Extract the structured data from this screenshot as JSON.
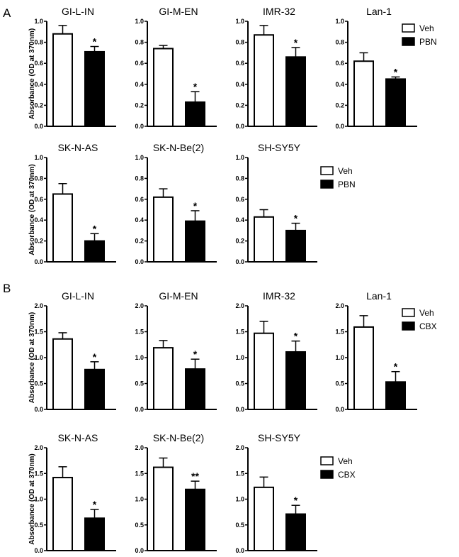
{
  "chart_data": [
    {
      "type": "bar",
      "panel_label": "A",
      "ylabel": "Absorbance (OD at 370nm)",
      "ylim": [
        0,
        1.0
      ],
      "yticks": [
        "0.0",
        "0.2",
        "0.4",
        "0.6",
        "0.8",
        "1.0"
      ],
      "legend": [
        "Veh",
        "PBN"
      ],
      "colors": {
        "Veh": "#ffffff",
        "PBN": "#000000"
      },
      "rows": [
        [
          {
            "title": "GI-L-IN",
            "values": [
              0.88,
              0.71
            ],
            "errors": [
              0.08,
              0.05
            ],
            "sig": "*"
          },
          {
            "title": "GI-M-EN",
            "values": [
              0.74,
              0.23
            ],
            "errors": [
              0.03,
              0.1
            ],
            "sig": "*"
          },
          {
            "title": "IMR-32",
            "values": [
              0.87,
              0.66
            ],
            "errors": [
              0.09,
              0.09
            ],
            "sig": "*"
          },
          {
            "title": "Lan-1",
            "values": [
              0.62,
              0.45
            ],
            "errors": [
              0.08,
              0.02
            ],
            "sig": "*"
          }
        ],
        [
          {
            "title": "SK-N-AS",
            "values": [
              0.65,
              0.2
            ],
            "errors": [
              0.1,
              0.07
            ],
            "sig": "*"
          },
          {
            "title": "SK-N-Be(2)",
            "values": [
              0.62,
              0.39
            ],
            "errors": [
              0.08,
              0.1
            ],
            "sig": "*"
          },
          {
            "title": "SH-SY5Y",
            "values": [
              0.43,
              0.3
            ],
            "errors": [
              0.07,
              0.07
            ],
            "sig": "*"
          }
        ]
      ]
    },
    {
      "type": "bar",
      "panel_label": "B",
      "ylabel": "Absorbance (OD at 370nm)",
      "ylim": [
        0,
        2.0
      ],
      "yticks": [
        "0.0",
        "0.5",
        "1.0",
        "1.5",
        "2.0"
      ],
      "legend": [
        "Veh",
        "CBX"
      ],
      "colors": {
        "Veh": "#ffffff",
        "CBX": "#000000"
      },
      "rows": [
        [
          {
            "title": "GI-L-IN",
            "values": [
              1.36,
              0.77
            ],
            "errors": [
              0.12,
              0.15
            ],
            "sig": "*"
          },
          {
            "title": "GI-M-EN",
            "values": [
              1.19,
              0.78
            ],
            "errors": [
              0.14,
              0.19
            ],
            "sig": "*"
          },
          {
            "title": "IMR-32",
            "values": [
              1.47,
              1.11
            ],
            "errors": [
              0.23,
              0.21
            ],
            "sig": "*"
          },
          {
            "title": "Lan-1",
            "values": [
              1.59,
              0.53
            ],
            "errors": [
              0.22,
              0.2
            ],
            "sig": "*"
          }
        ],
        [
          {
            "title": "SK-N-AS",
            "values": [
              1.42,
              0.63
            ],
            "errors": [
              0.21,
              0.17
            ],
            "sig": "*"
          },
          {
            "title": "SK-N-Be(2)",
            "values": [
              1.62,
              1.19
            ],
            "errors": [
              0.18,
              0.16
            ],
            "sig": "**"
          },
          {
            "title": "SH-SY5Y",
            "values": [
              1.23,
              0.71
            ],
            "errors": [
              0.2,
              0.17
            ],
            "sig": "*"
          }
        ]
      ]
    }
  ]
}
